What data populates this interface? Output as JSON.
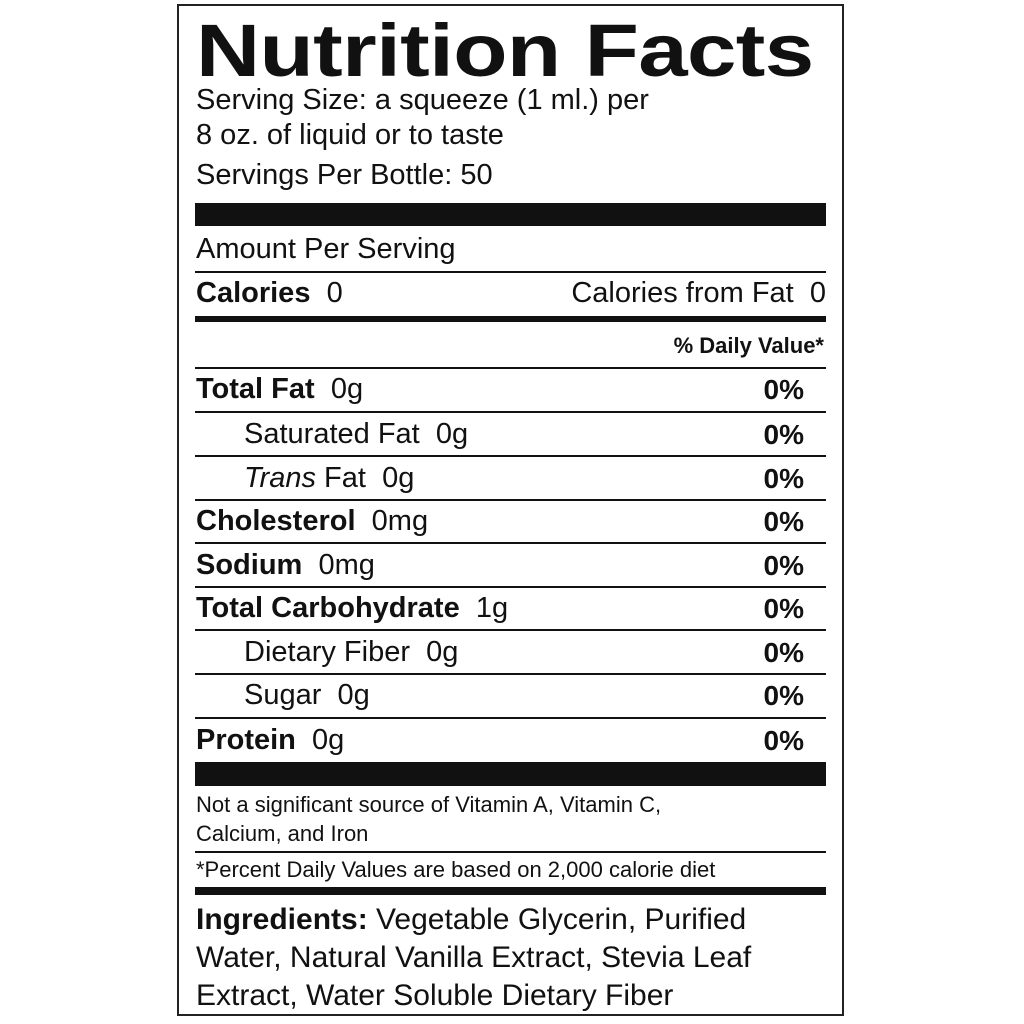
{
  "title": "Nutrition Facts",
  "serving": {
    "line1": "Serving Size: a squeeze (1 ml.) per",
    "line2": "8 oz. of liquid or to taste",
    "line3": "Servings Per Bottle: 50"
  },
  "amount_per_serving": "Amount Per Serving",
  "calories": {
    "label": "Calories",
    "value": "0",
    "from_fat_label": "Calories from Fat",
    "from_fat_value": "0"
  },
  "daily_value_header": "% Daily Value*",
  "nutrients": [
    {
      "name": "Total Fat",
      "amount": "0g",
      "dv": "0%"
    },
    {
      "name": "Saturated Fat",
      "amount": "0g",
      "dv": "0%"
    },
    {
      "name": "Trans",
      "name_suffix": "Fat",
      "amount": "0g",
      "dv": "0%"
    },
    {
      "name": "Cholesterol",
      "amount": "0mg",
      "dv": "0%"
    },
    {
      "name": "Sodium",
      "amount": "0mg",
      "dv": "0%"
    },
    {
      "name": "Total Carbohydrate",
      "amount": "1g",
      "dv": "0%"
    },
    {
      "name": "Dietary Fiber",
      "amount": "0g",
      "dv": "0%"
    },
    {
      "name": "Sugar",
      "amount": "0g",
      "dv": "0%"
    },
    {
      "name": "Protein",
      "amount": "0g",
      "dv": "0%"
    }
  ],
  "footnote": {
    "vitamins_line1": "Not a significant source of Vitamin A, Vitamin C,",
    "vitamins_line2": "Calcium, and Iron",
    "percent_note": "*Percent Daily Values are based on 2,000 calorie diet"
  },
  "ingredients": {
    "label": "Ingredients:",
    "line1": "Vegetable Glycerin, Purified",
    "line2": "Water, Natural Vanilla Extract, Stevia Leaf",
    "line3": "Extract, Water Soluble Dietary Fiber"
  }
}
